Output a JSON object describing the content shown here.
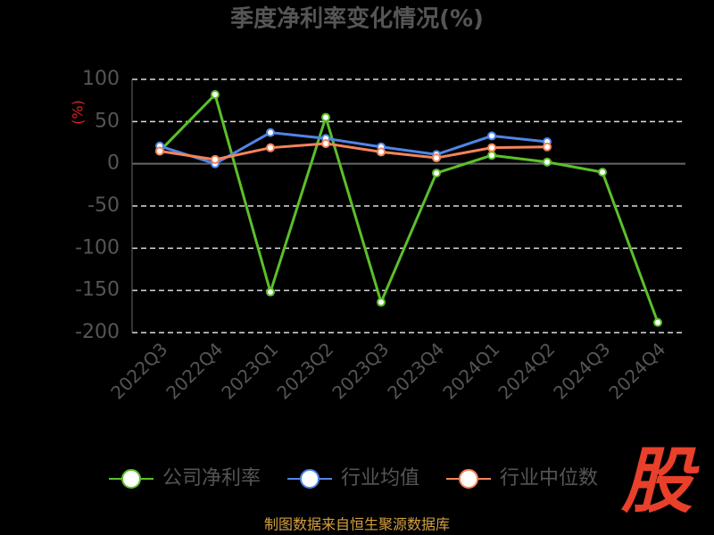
{
  "chart_data": {
    "type": "line",
    "title": "季度净利率变化情况(%)",
    "y_label": "(%)",
    "categories": [
      "2022Q3",
      "2022Q4",
      "2023Q1",
      "2023Q2",
      "2023Q3",
      "2023Q4",
      "2024Q1",
      "2024Q2",
      "2024Q3",
      "2024Q4"
    ],
    "series": [
      {
        "name": "公司净利率",
        "color": "#5cbf2a",
        "values": [
          15,
          82,
          -152,
          55,
          -164,
          -11,
          10,
          2,
          -10,
          -188
        ]
      },
      {
        "name": "行业均值",
        "color": "#4f86e6",
        "values": [
          21,
          0,
          37,
          30,
          20,
          11,
          33,
          26,
          null,
          null
        ]
      },
      {
        "name": "行业中位数",
        "color": "#f5845a",
        "values": [
          15,
          5,
          19,
          24,
          14,
          7,
          19,
          20,
          null,
          null
        ]
      }
    ],
    "ylim": [
      -200,
      100
    ],
    "yticks": [
      -200,
      -150,
      -100,
      -50,
      0,
      50,
      100
    ],
    "grid": true,
    "source": "制图数据来自恒生聚源数据库",
    "logo": "股"
  }
}
